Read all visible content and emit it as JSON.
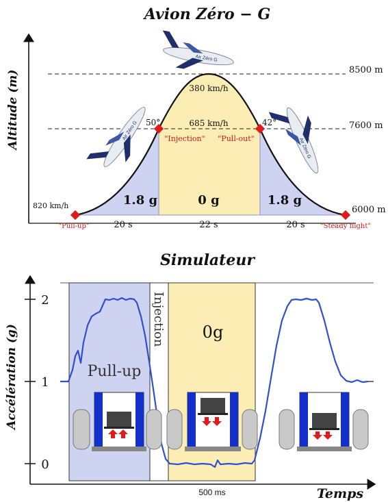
{
  "colors": {
    "blue_zone": "#cdd3f1",
    "blue_zone_stroke": "#8a93c9",
    "yellow_zone": "#fbedb3",
    "red_marker": "#e11b1b",
    "red_text": "#d21a1a",
    "accel_curve": "#2f4fd1",
    "plane_body": "#e9edf2",
    "plane_tail": "#1e2f6b",
    "box_blue": "#1230c9",
    "tank_gray": "#c9c9c9",
    "text_dark": "#111111"
  },
  "top": {
    "title": "Avion Zéro − G",
    "y_axis_label": "Altitude (m)",
    "altitude_levels": [
      "8500 m",
      "7600 m",
      "6000 m"
    ],
    "speed_apex": "380 km/h",
    "speed_injection": "685 km/h",
    "speed_start": "820 km/h",
    "angle_left": "50°",
    "angle_right": "42°",
    "label_injection": "\"Injection\"",
    "label_pullout": "\"Pull-out\"",
    "label_pullup": "\"Pull-up\"",
    "label_steady": "\"Steady flight\"",
    "g_left": "1.8 g",
    "g_center": "0 g",
    "g_right": "1.8 g",
    "dur_left": "20 s",
    "dur_center": "22 s",
    "dur_right": "20 s",
    "plane_livery": "Air Zéro G"
  },
  "bottom": {
    "title": "Simulateur",
    "y_axis_label": "Accélération (g)",
    "y_ticks": [
      "2",
      "1",
      "0"
    ],
    "x_axis_label": "Temps",
    "x_scale_label": "500 ms",
    "label_pullup": "Pull-up",
    "label_injection": "Injection",
    "label_zero_g": "0g"
  }
}
